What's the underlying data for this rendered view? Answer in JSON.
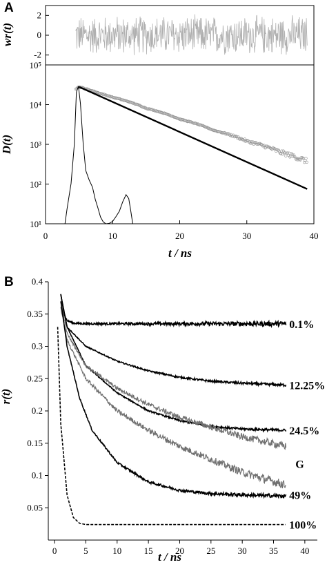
{
  "panels": [
    {
      "id": "A",
      "label": "A",
      "residuals": {
        "ylabel": "wr(t)",
        "ylim": [
          -3,
          3
        ],
        "y_ticks": [
          "2",
          "0",
          "-2"
        ],
        "y_tick_values": [
          2,
          0,
          -2
        ],
        "color": "#b0b0b0",
        "x_start": 4.5,
        "x_end": 39,
        "amplitude": 2.2
      },
      "chart_data": {
        "type": "scatter",
        "xlabel": "t / ns",
        "ylabel": "D(t)",
        "xlim": [
          0,
          40
        ],
        "ylim": [
          10,
          100000
        ],
        "yscale": "log",
        "x_ticks": [
          "0",
          "10",
          "20",
          "30",
          "40"
        ],
        "x_tick_values": [
          0,
          10,
          20,
          30,
          40
        ],
        "y_ticks": [
          "10⁵",
          "10⁴",
          "10³",
          "10²",
          "10¹"
        ],
        "y_tick_values": [
          100000,
          10000,
          1000,
          100,
          10
        ],
        "series": [
          {
            "kind": "decay-data",
            "color": "#909090",
            "x": [
              4.5,
              5,
              6,
              8,
              10,
              15,
              20,
              25,
              30,
              35,
              39
            ],
            "y": [
              25000,
              28000,
              25000,
              19500,
              15300,
              8100,
              4300,
              2270,
              1200,
              630,
              370
            ]
          },
          {
            "kind": "fit",
            "color": "#000000",
            "x": [
              5,
              39
            ],
            "y": [
              28000,
              75
            ]
          },
          {
            "kind": "irf",
            "color": "#000000",
            "x": [
              2.9,
              3.2,
              3.8,
              4.3,
              4.6,
              4.9,
              5.2,
              5.6,
              6.0,
              6.5,
              7.0,
              7.4,
              7.8,
              8.2,
              8.6,
              9.0,
              9.5,
              10.0,
              10.5,
              11.0,
              11.5,
              12.0,
              12.4,
              12.7,
              13.0
            ],
            "y": [
              10,
              25,
              100,
              1000,
              20000,
              30000,
              10000,
              1000,
              200,
              120,
              80,
              40,
              25,
              15,
              11,
              10,
              10,
              12,
              15,
              20,
              35,
              55,
              45,
              20,
              10
            ]
          }
        ]
      }
    },
    {
      "id": "B",
      "label": "B",
      "chart_data": {
        "type": "line",
        "xlabel": "t / ns",
        "ylabel": "r(t)",
        "xlim": [
          -1,
          42
        ],
        "ylim": [
          0,
          0.4
        ],
        "x_ticks": [
          "0",
          "5",
          "10",
          "15",
          "20",
          "25",
          "30",
          "35",
          "40"
        ],
        "x_tick_values": [
          0,
          5,
          10,
          15,
          20,
          25,
          30,
          35,
          40
        ],
        "y_ticks": [
          "0.4",
          "0.35",
          "0.3",
          "0.25",
          "0.2",
          "0.15",
          "0.1",
          "0.05"
        ],
        "y_tick_values": [
          0.4,
          0.35,
          0.3,
          0.25,
          0.2,
          0.15,
          0.1,
          0.05
        ],
        "series": [
          {
            "label": "0.1%",
            "color": "#000000",
            "dashed": false,
            "x": [
              1,
              1.5,
              2,
              3,
              5,
              10,
              20,
              30,
              37
            ],
            "y": [
              0.38,
              0.35,
              0.34,
              0.336,
              0.335,
              0.335,
              0.335,
              0.335,
              0.335
            ],
            "noise": 0.004
          },
          {
            "label": "12.25%",
            "color": "#000000",
            "dashed": false,
            "x": [
              1,
              2,
              5,
              10,
              15,
              20,
              25,
              30,
              37
            ],
            "y": [
              0.38,
              0.33,
              0.3,
              0.277,
              0.262,
              0.252,
              0.246,
              0.243,
              0.24
            ],
            "noise": 0.002
          },
          {
            "label": "24.5%",
            "color": "#000000",
            "dashed": false,
            "x": [
              1,
              2,
              5,
              10,
              15,
              20,
              25,
              30,
              37
            ],
            "y": [
              0.38,
              0.33,
              0.27,
              0.228,
              0.2,
              0.185,
              0.176,
              0.172,
              0.17
            ],
            "noise": 0.002
          },
          {
            "label": "G-upper",
            "color": "#707070",
            "dashed": false,
            "x": [
              1,
              2,
              5,
              10,
              15,
              20,
              25,
              30,
              37
            ],
            "y": [
              0.37,
              0.32,
              0.27,
              0.235,
              0.21,
              0.19,
              0.175,
              0.16,
              0.145
            ],
            "noise": 0.006
          },
          {
            "label": "G-lower",
            "color": "#707070",
            "dashed": false,
            "x": [
              1,
              2,
              5,
              10,
              15,
              20,
              25,
              30,
              37
            ],
            "y": [
              0.36,
              0.31,
              0.25,
              0.2,
              0.17,
              0.145,
              0.125,
              0.105,
              0.085
            ],
            "noise": 0.007
          },
          {
            "label": "49%",
            "color": "#000000",
            "dashed": false,
            "x": [
              1,
              2,
              4,
              6,
              10,
              15,
              20,
              25,
              30,
              37
            ],
            "y": [
              0.37,
              0.3,
              0.22,
              0.17,
              0.12,
              0.09,
              0.077,
              0.072,
              0.07,
              0.068
            ],
            "noise": 0.003
          },
          {
            "label": "100%",
            "color": "#000000",
            "dashed": true,
            "x": [
              0.5,
              1,
              2,
              3,
              4,
              5,
              10,
              20,
              37
            ],
            "y": [
              0.33,
              0.18,
              0.07,
              0.035,
              0.026,
              0.024,
              0.024,
              0.024,
              0.024
            ],
            "noise": 0
          }
        ],
        "annotations": [
          {
            "text": "0.1%",
            "x": 37.5,
            "y": 0.335
          },
          {
            "text": "12.25%",
            "x": 37.5,
            "y": 0.24
          },
          {
            "text": "24.5%",
            "x": 37.5,
            "y": 0.17
          },
          {
            "text": "G",
            "x": 38.5,
            "y": 0.118
          },
          {
            "text": "49%",
            "x": 37.5,
            "y": 0.07
          },
          {
            "text": "100%",
            "x": 37.5,
            "y": 0.024
          }
        ]
      }
    }
  ]
}
